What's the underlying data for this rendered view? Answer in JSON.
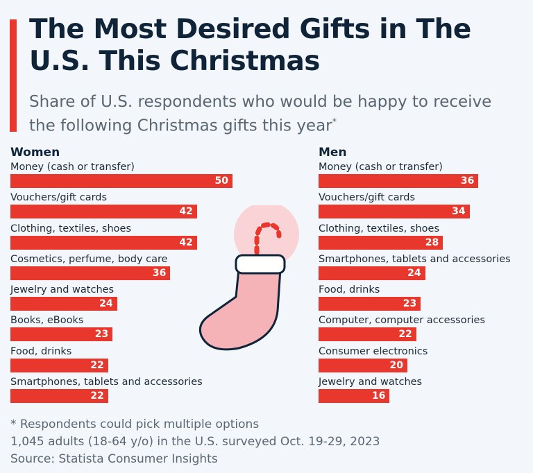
{
  "header": {
    "title": "The Most Desired Gifts in The U.S. This Christmas",
    "subtitle": "Share of U.S. respondents who would be happy to receive the following Christmas gifts this year",
    "subtitle_mark": "*"
  },
  "colors": {
    "accent": "#e8372c",
    "title": "#0f2438",
    "text_muted": "#5a6772",
    "background": "#f3f6fa",
    "stocking": "#f5b3b7"
  },
  "chart_data": [
    {
      "type": "bar",
      "orientation": "horizontal",
      "title": "Women",
      "categories": [
        "Money (cash or transfer)",
        "Vouchers/gift cards",
        "Clothing, textiles, shoes",
        "Cosmetics, perfume, body care",
        "Jewelry and watches",
        "Books, eBooks",
        "Food, drinks",
        "Smartphones, tablets and accessories"
      ],
      "values": [
        50,
        42,
        42,
        36,
        24,
        23,
        22,
        22
      ],
      "data_labels": [
        "50",
        "42",
        "42",
        "36",
        "24",
        "23",
        "22",
        "22"
      ],
      "xlim": [
        0,
        50
      ],
      "grid": false
    },
    {
      "type": "bar",
      "orientation": "horizontal",
      "title": "Men",
      "categories": [
        "Money (cash or transfer)",
        "Vouchers/gift cards",
        "Clothing, textiles, shoes",
        "Smartphones, tablets and accessories",
        "Food, drinks",
        "Computer, computer accessories",
        "Consumer electronics",
        "Jewelry and watches"
      ],
      "values": [
        36,
        34,
        28,
        24,
        23,
        22,
        20,
        16
      ],
      "data_labels": [
        "36",
        "34",
        "28",
        "24",
        "23",
        "22",
        "20",
        "16"
      ],
      "xlim": [
        0,
        50
      ],
      "grid": false
    }
  ],
  "footer": {
    "note": "* Respondents could pick multiple options",
    "survey": "1,045 adults (18-64 y/o) in the U.S. surveyed Oct. 19-29, 2023",
    "source": "Source: Statista Consumer Insights"
  },
  "illustration": {
    "icon": "christmas-stocking-icon"
  }
}
